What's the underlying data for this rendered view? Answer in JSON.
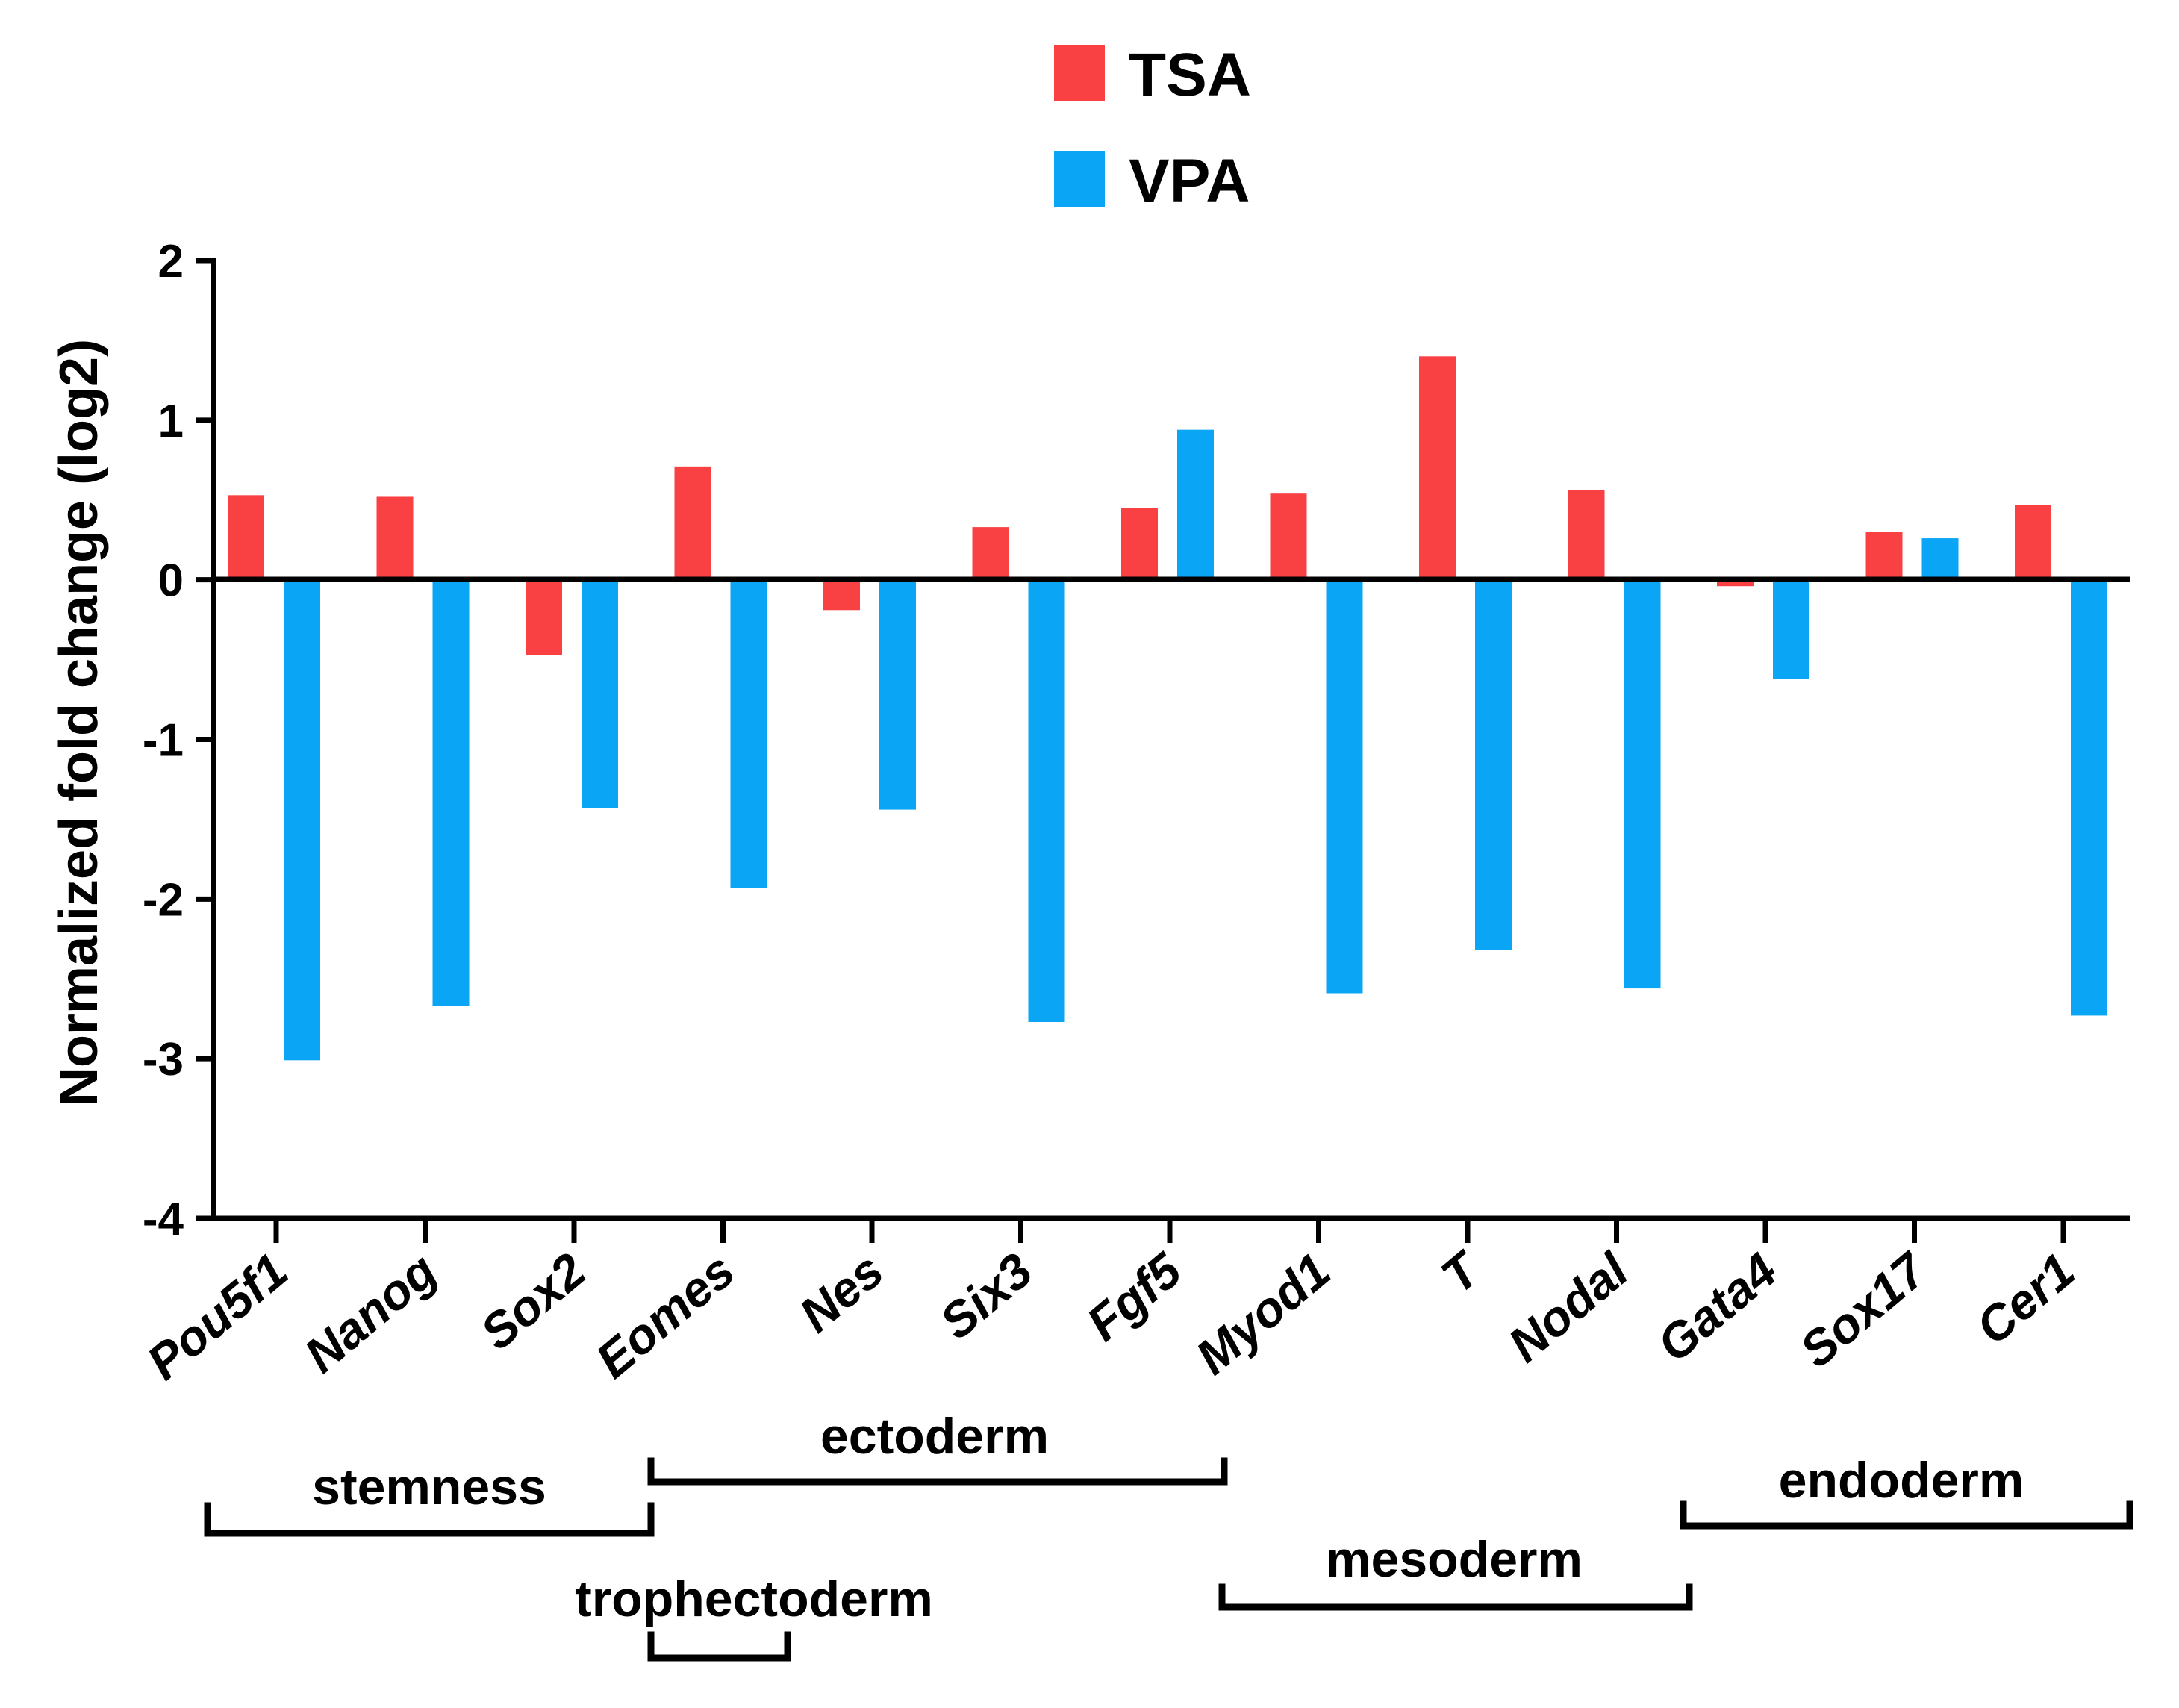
{
  "chart_data": {
    "type": "bar",
    "title": "",
    "xlabel": "",
    "ylabel": "Normalized fold change (log2)",
    "ylim": [
      -4,
      2
    ],
    "yticks": [
      2,
      1,
      0,
      -1,
      -2,
      -3,
      -4
    ],
    "grid": false,
    "legend_position": "top-center",
    "categories": [
      "Pou5f1",
      "Nanog",
      "Sox2",
      "Eomes",
      "Nes",
      "Six3",
      "Fgf5",
      "Myod1",
      "T",
      "Nodal",
      "Gata4",
      "Sox17",
      "Cer1"
    ],
    "series": [
      {
        "name": "TSA",
        "color": "#f94144",
        "values": [
          0.53,
          0.52,
          -0.47,
          0.71,
          -0.19,
          0.33,
          0.45,
          0.54,
          1.4,
          0.56,
          -0.04,
          0.3,
          0.47
        ]
      },
      {
        "name": "VPA",
        "color": "#0aa5f5",
        "values": [
          -3.01,
          -2.67,
          -1.43,
          -1.93,
          -1.44,
          -2.77,
          0.94,
          -2.59,
          -2.32,
          -2.56,
          -0.62,
          0.26,
          -2.73
        ]
      }
    ],
    "groups": [
      {
        "label": "stemness",
        "from": "Pou5f1",
        "to": "Sox2"
      },
      {
        "label": "trophectoderm",
        "from": "Eomes",
        "to": "Eomes"
      },
      {
        "label": "ectoderm",
        "from": "Eomes",
        "to": "Fgf5"
      },
      {
        "label": "mesoderm",
        "from": "Myod1",
        "to": "Nodal"
      },
      {
        "label": "endoderm",
        "from": "Gata4",
        "to": "Cer1"
      }
    ]
  }
}
